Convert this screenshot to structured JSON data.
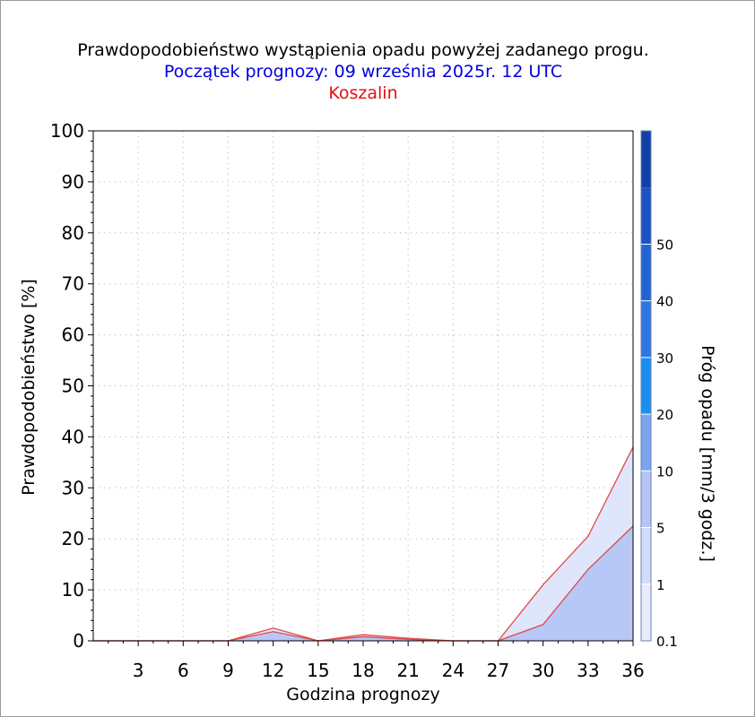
{
  "chart_data": {
    "type": "area",
    "title": "Prawdopodobieństwo wystąpienia opadu powyżej zadanego progu.",
    "subtitle": "Początek prognozy: 09 września 2025r. 12 UTC",
    "location": "Koszalin",
    "xlabel": "Godzina prognozy",
    "ylabel": "Prawdopodobieństwo [%]",
    "colorbar_label": "Próg opadu [mm/3 godz.]",
    "xlim": [
      0,
      36
    ],
    "ylim": [
      0,
      100
    ],
    "x_ticks": [
      "3",
      "6",
      "9",
      "12",
      "15",
      "18",
      "21",
      "24",
      "27",
      "30",
      "33",
      "36"
    ],
    "y_ticks": [
      "0",
      "10",
      "20",
      "30",
      "40",
      "50",
      "60",
      "70",
      "80",
      "90",
      "100"
    ],
    "grid": true,
    "x": [
      0,
      3,
      6,
      9,
      12,
      15,
      18,
      21,
      24,
      27,
      30,
      33,
      36
    ],
    "series": [
      {
        "threshold": "0.1",
        "color": "#dfe6fb",
        "values": [
          0,
          0,
          0,
          0,
          2.5,
          0,
          1.2,
          0.5,
          0,
          0,
          11,
          20.5,
          38
        ]
      },
      {
        "threshold": "1",
        "color": "#b7c8f6",
        "values": [
          0,
          0,
          0,
          0,
          1.8,
          0,
          0.8,
          0.3,
          0,
          0,
          3.2,
          14,
          22.5
        ]
      }
    ],
    "colorbar": {
      "levels": [
        "0.1",
        "1",
        "5",
        "10",
        "20",
        "30",
        "40",
        "50"
      ],
      "colors": [
        "#e8ecfc",
        "#d2dcfa",
        "#b4c6f6",
        "#7ba4f0",
        "#1a8ff0",
        "#2e76e0",
        "#2264d4",
        "#1a52c2",
        "#123fa6"
      ]
    },
    "outline_color": "#e04848"
  }
}
